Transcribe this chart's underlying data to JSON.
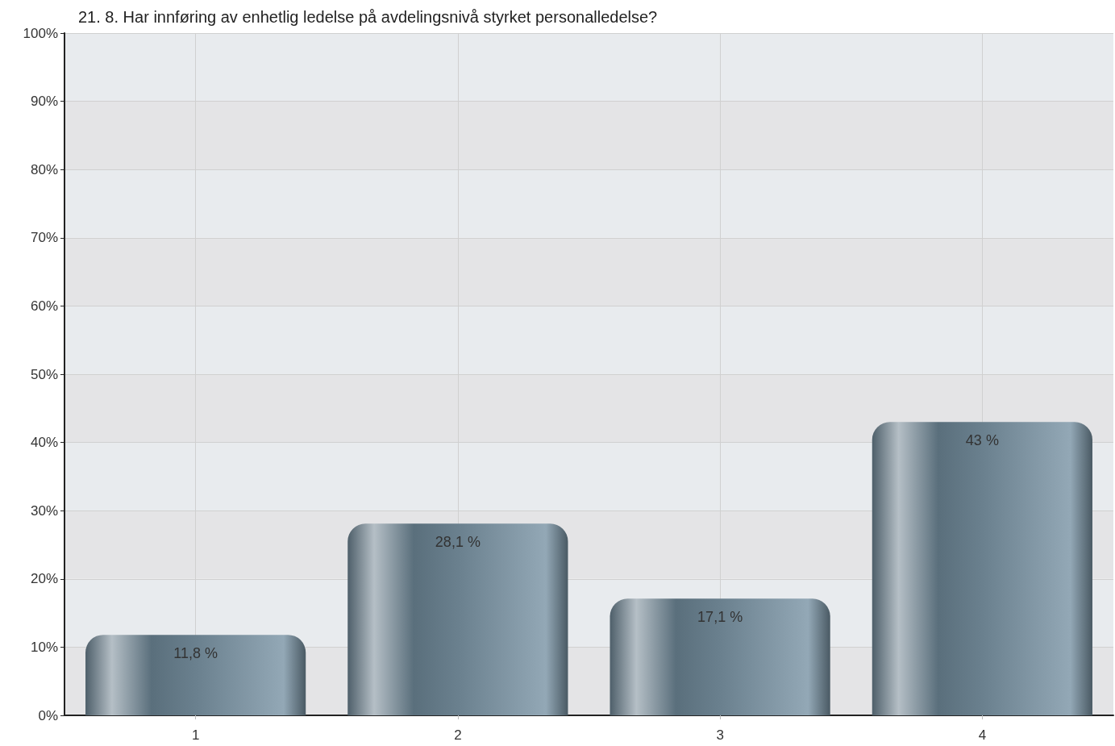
{
  "chart_data": {
    "type": "bar",
    "title": "21. 8. Har innføring av enhetlig ledelse på avdelingsnivå styrket personalledelse?",
    "categories": [
      "1",
      "2",
      "3",
      "4"
    ],
    "values": [
      11.8,
      28.1,
      17.1,
      43
    ],
    "value_labels": [
      "11,8 %",
      "28,1 %",
      "17,1 %",
      "43 %"
    ],
    "color": "#6a808e",
    "ylim": [
      0,
      100
    ],
    "yticks": [
      {
        "value": 0,
        "label": "0%"
      },
      {
        "value": 10,
        "label": "10%"
      },
      {
        "value": 20,
        "label": "20%"
      },
      {
        "value": 30,
        "label": "30%"
      },
      {
        "value": 40,
        "label": "40%"
      },
      {
        "value": 50,
        "label": "50%"
      },
      {
        "value": 60,
        "label": "60%"
      },
      {
        "value": 70,
        "label": "70%"
      },
      {
        "value": 80,
        "label": "80%"
      },
      {
        "value": 90,
        "label": "90%"
      },
      {
        "value": 100,
        "label": "100%"
      }
    ],
    "grid": true
  }
}
